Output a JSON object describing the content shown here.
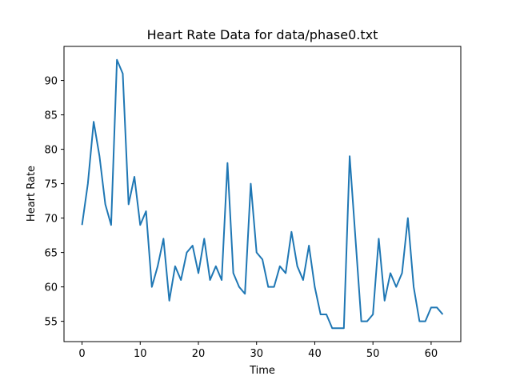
{
  "chart_data": {
    "type": "line",
    "title": "Heart Rate Data for data/phase0.txt",
    "xlabel": "Time",
    "ylabel": "Heart Rate",
    "xlim": [
      -3.1,
      65.1
    ],
    "ylim": [
      52.05,
      94.95
    ],
    "xticks": [
      0,
      10,
      20,
      30,
      40,
      50,
      60
    ],
    "yticks": [
      55,
      60,
      65,
      70,
      75,
      80,
      85,
      90
    ],
    "grid": false,
    "line_color": "#1f77b4",
    "series": [
      {
        "x": [
          0,
          1,
          2,
          3,
          4,
          5,
          6,
          7,
          8,
          9,
          10,
          11,
          12,
          13,
          14,
          15,
          16,
          17,
          18,
          19,
          20,
          21,
          22,
          23,
          24,
          25,
          26,
          27,
          28,
          29,
          30,
          31,
          32,
          33,
          34,
          35,
          36,
          37,
          38,
          39,
          40,
          41,
          42,
          43,
          44,
          45,
          46,
          47,
          48,
          49,
          50,
          51,
          52,
          53,
          54,
          55,
          56,
          57,
          58,
          59,
          60,
          61,
          62
        ],
        "values": [
          69,
          75,
          84,
          79,
          72,
          69,
          93,
          91,
          72,
          76,
          69,
          71,
          60,
          63,
          67,
          58,
          63,
          61,
          65,
          66,
          62,
          67,
          61,
          63,
          61,
          78,
          62,
          60,
          59,
          75,
          65,
          64,
          60,
          60,
          63,
          62,
          68,
          63,
          61,
          66,
          60,
          56,
          56,
          54,
          54,
          54,
          79,
          67,
          55,
          55,
          56,
          67,
          58,
          62,
          60,
          62,
          70,
          60,
          55,
          55,
          57,
          57,
          56
        ]
      }
    ]
  }
}
